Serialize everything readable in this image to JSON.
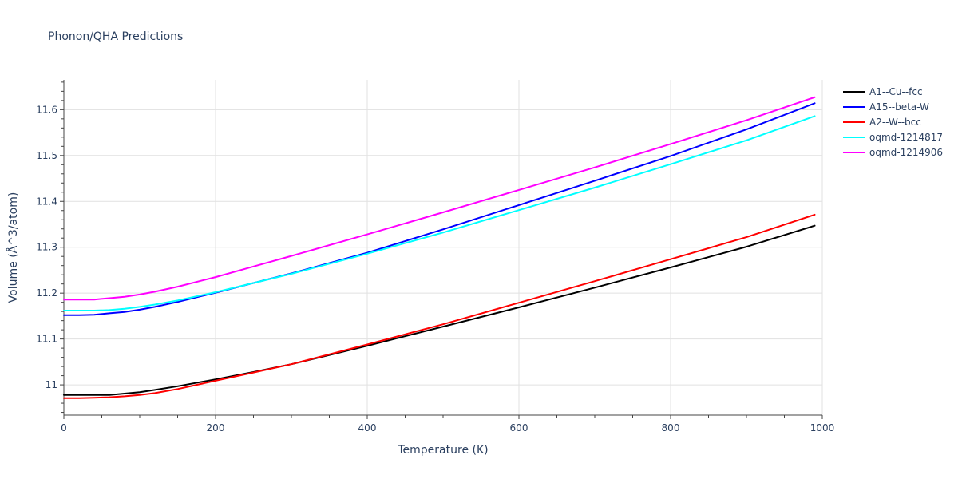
{
  "chart_data": {
    "type": "line",
    "title": "Phonon/QHA Predictions",
    "xlabel": "Temperature (K)",
    "ylabel": "Volume (Å^3/atom)",
    "xlim": [
      0,
      1000
    ],
    "ylim": [
      10.934,
      11.665
    ],
    "x_ticks": [
      0,
      200,
      400,
      600,
      800,
      1000
    ],
    "x_tick_labels": [
      "0",
      "200",
      "400",
      "600",
      "800",
      "1000"
    ],
    "y_ticks": [
      11.0,
      11.1,
      11.2,
      11.3,
      11.4,
      11.5,
      11.6
    ],
    "y_tick_labels": [
      "11",
      "11.1",
      "11.2",
      "11.3",
      "11.4",
      "11.5",
      "11.6"
    ],
    "grid": true,
    "legend_position": "top-right",
    "series": [
      {
        "name": "A1--Cu--fcc",
        "color": "#000000",
        "x": [
          0,
          20,
          40,
          60,
          80,
          100,
          120,
          150,
          200,
          250,
          300,
          400,
          500,
          600,
          700,
          800,
          900,
          990
        ],
        "y": [
          10.978,
          10.978,
          10.978,
          10.978,
          10.981,
          10.984,
          10.989,
          10.997,
          11.012,
          11.028,
          11.045,
          11.085,
          11.127,
          11.169,
          11.212,
          11.256,
          11.301,
          11.347
        ]
      },
      {
        "name": "A15--beta-W",
        "color": "#0000ff",
        "x": [
          0,
          20,
          40,
          60,
          80,
          100,
          120,
          150,
          200,
          250,
          300,
          400,
          500,
          600,
          700,
          800,
          900,
          990
        ],
        "y": [
          11.152,
          11.152,
          11.153,
          11.156,
          11.159,
          11.164,
          11.17,
          11.181,
          11.201,
          11.222,
          11.243,
          11.288,
          11.339,
          11.392,
          11.445,
          11.499,
          11.557,
          11.614
        ]
      },
      {
        "name": "A2--W--bcc",
        "color": "#ff0000",
        "x": [
          0,
          20,
          40,
          60,
          80,
          100,
          120,
          150,
          200,
          250,
          300,
          400,
          500,
          600,
          700,
          800,
          900,
          990
        ],
        "y": [
          10.971,
          10.971,
          10.972,
          10.973,
          10.975,
          10.978,
          10.982,
          10.991,
          11.009,
          11.027,
          11.045,
          11.088,
          11.132,
          11.179,
          11.226,
          11.274,
          11.322,
          11.371
        ]
      },
      {
        "name": "oqmd-1214817",
        "color": "#00ffff",
        "x": [
          0,
          20,
          40,
          60,
          80,
          100,
          120,
          150,
          200,
          250,
          300,
          400,
          500,
          600,
          700,
          800,
          900,
          990
        ],
        "y": [
          11.162,
          11.162,
          11.162,
          11.163,
          11.166,
          11.17,
          11.175,
          11.184,
          11.202,
          11.222,
          11.242,
          11.286,
          11.332,
          11.381,
          11.43,
          11.481,
          11.533,
          11.586
        ]
      },
      {
        "name": "oqmd-1214906",
        "color": "#ff00ff",
        "x": [
          0,
          20,
          40,
          60,
          80,
          100,
          120,
          150,
          200,
          250,
          300,
          400,
          500,
          600,
          700,
          800,
          900,
          990
        ],
        "y": [
          11.186,
          11.186,
          11.186,
          11.189,
          11.192,
          11.197,
          11.203,
          11.214,
          11.235,
          11.258,
          11.281,
          11.328,
          11.376,
          11.425,
          11.474,
          11.525,
          11.577,
          11.627
        ]
      }
    ]
  }
}
